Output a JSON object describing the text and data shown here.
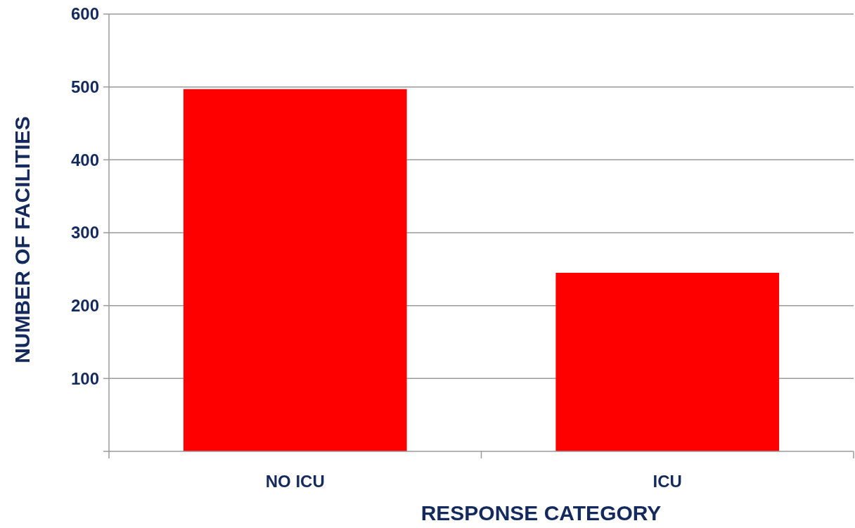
{
  "chart_data": {
    "type": "bar",
    "xlabel": "RESPONSE CATEGORY",
    "ylabel": "NUMBER OF FACILITIES",
    "categories": [
      "NO ICU",
      "ICU"
    ],
    "values": [
      497,
      245
    ],
    "color": "#ff0000",
    "ylim": [
      0,
      600
    ],
    "yticks": [
      {
        "value": 0,
        "label": null
      },
      100,
      200,
      300,
      400,
      500,
      600
    ],
    "grid": "y"
  }
}
